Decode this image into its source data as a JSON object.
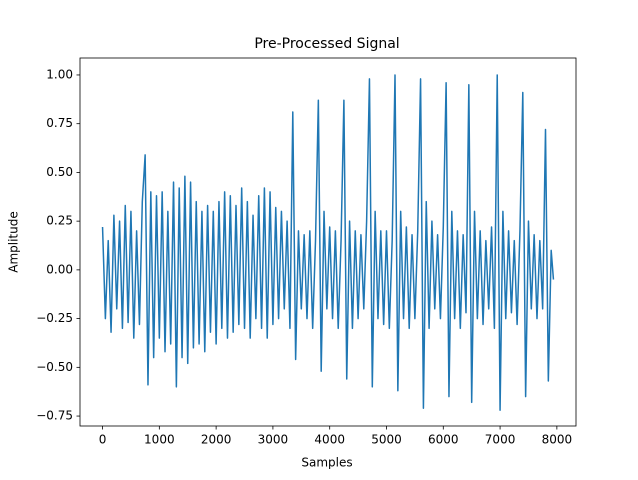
{
  "chart_data": {
    "type": "line",
    "title": "Pre-Processed Signal",
    "xlabel": "Samples",
    "ylabel": "Amplitude",
    "color": "#1f77b4",
    "x": [
      0,
      50,
      100,
      150,
      200,
      250,
      300,
      350,
      400,
      450,
      500,
      550,
      600,
      650,
      700,
      750,
      800,
      850,
      900,
      950,
      1000,
      1050,
      1100,
      1150,
      1200,
      1250,
      1300,
      1350,
      1400,
      1450,
      1500,
      1550,
      1600,
      1650,
      1700,
      1750,
      1800,
      1850,
      1900,
      1950,
      2000,
      2050,
      2100,
      2150,
      2200,
      2250,
      2300,
      2350,
      2400,
      2450,
      2500,
      2550,
      2600,
      2650,
      2700,
      2750,
      2800,
      2850,
      2900,
      2950,
      3000,
      3050,
      3100,
      3150,
      3200,
      3250,
      3300,
      3350,
      3400,
      3450,
      3500,
      3550,
      3600,
      3650,
      3700,
      3750,
      3800,
      3850,
      3900,
      3950,
      4000,
      4050,
      4100,
      4150,
      4200,
      4250,
      4300,
      4350,
      4400,
      4450,
      4500,
      4550,
      4600,
      4650,
      4700,
      4750,
      4800,
      4850,
      4900,
      4950,
      5000,
      5050,
      5100,
      5150,
      5200,
      5250,
      5300,
      5350,
      5400,
      5450,
      5500,
      5550,
      5600,
      5650,
      5700,
      5750,
      5800,
      5850,
      5900,
      5950,
      6000,
      6050,
      6100,
      6150,
      6200,
      6250,
      6300,
      6350,
      6400,
      6450,
      6500,
      6550,
      6600,
      6650,
      6700,
      6750,
      6800,
      6850,
      6900,
      6950,
      7000,
      7050,
      7100,
      7150,
      7200,
      7250,
      7300,
      7350,
      7400,
      7450,
      7500,
      7550,
      7600,
      7650,
      7700,
      7750,
      7800,
      7850,
      7900,
      7940
    ],
    "values": [
      0.22,
      -0.25,
      0.15,
      -0.32,
      0.28,
      -0.2,
      0.25,
      -0.3,
      0.33,
      -0.27,
      0.3,
      -0.35,
      0.2,
      -0.28,
      0.35,
      0.59,
      -0.59,
      0.4,
      -0.45,
      0.38,
      -0.35,
      0.4,
      -0.42,
      0.3,
      -0.38,
      0.45,
      -0.6,
      0.42,
      -0.45,
      0.48,
      -0.48,
      0.45,
      -0.4,
      0.35,
      -0.38,
      0.3,
      -0.42,
      0.33,
      -0.32,
      0.3,
      -0.38,
      0.35,
      -0.3,
      0.4,
      -0.35,
      0.38,
      -0.32,
      0.33,
      -0.28,
      0.42,
      -0.3,
      0.35,
      -0.35,
      0.28,
      -0.25,
      0.38,
      -0.3,
      0.42,
      -0.35,
      0.4,
      -0.28,
      0.32,
      -0.25,
      0.3,
      -0.2,
      0.25,
      -0.3,
      0.81,
      -0.46,
      0.2,
      -0.2,
      0.18,
      -0.25,
      0.2,
      -0.3,
      0.15,
      0.87,
      -0.52,
      0.3,
      -0.2,
      0.22,
      -0.25,
      0.2,
      -0.3,
      0.15,
      0.87,
      -0.56,
      0.25,
      -0.3,
      0.2,
      -0.25,
      0.18,
      -0.2,
      0.25,
      0.98,
      -0.6,
      0.3,
      -0.25,
      0.2,
      -0.28,
      0.2,
      -0.3,
      0.15,
      1.0,
      -0.62,
      0.3,
      -0.25,
      0.22,
      -0.3,
      0.18,
      -0.25,
      0.2,
      0.98,
      -0.71,
      0.35,
      -0.3,
      0.25,
      -0.2,
      0.18,
      -0.25,
      0.22,
      0.96,
      -0.65,
      0.3,
      -0.25,
      0.2,
      -0.3,
      0.18,
      -0.22,
      0.95,
      -0.68,
      0.3,
      -0.25,
      0.2,
      -0.28,
      0.15,
      -0.2,
      0.22,
      -0.3,
      1.0,
      -0.72,
      0.3,
      -0.25,
      0.2,
      -0.22,
      0.15,
      -0.28,
      0.2,
      0.91,
      -0.65,
      0.25,
      -0.2,
      0.18,
      -0.25,
      0.15,
      -0.2,
      0.72,
      -0.57,
      0.1,
      -0.05
    ],
    "xlim": [
      -397,
      8337
    ],
    "ylim": [
      -0.801,
      1.087
    ],
    "xticks": [
      0,
      1000,
      2000,
      3000,
      4000,
      5000,
      6000,
      7000,
      8000
    ],
    "yticks": [
      {
        "value": -0.75,
        "label": "−0.75"
      },
      {
        "value": -0.5,
        "label": "−0.50"
      },
      {
        "value": -0.25,
        "label": "−0.25"
      },
      {
        "value": 0,
        "label": "0.00"
      },
      {
        "value": 0.25,
        "label": "0.25"
      },
      {
        "value": 0.5,
        "label": "0.50"
      },
      {
        "value": 0.75,
        "label": "0.75"
      },
      {
        "value": 1.0,
        "label": "1.00"
      }
    ],
    "grid": false
  }
}
